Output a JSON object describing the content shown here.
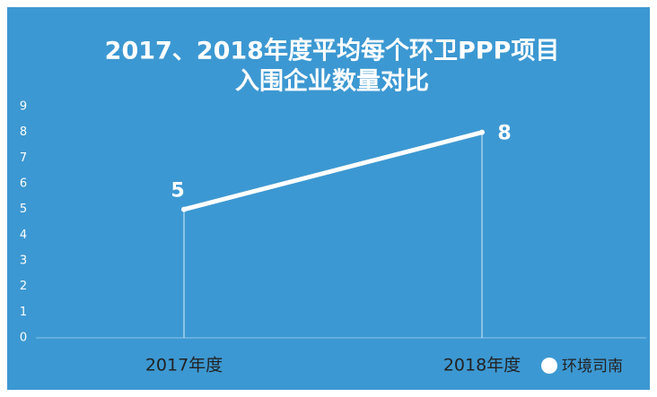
{
  "chart_data": {
    "type": "line",
    "title": [
      "2017、2018年度平均每个环卫PPP项目",
      "入围企业数量对比"
    ],
    "categories": [
      "2017年度",
      "2018年度"
    ],
    "values": [
      5,
      8
    ],
    "color": "#ffffff",
    "ylim": [
      0,
      9
    ],
    "yticks": [
      0,
      1,
      2,
      3,
      4,
      5,
      6,
      7,
      8,
      9
    ],
    "drop_lines": true
  },
  "watermark": "环境司南"
}
